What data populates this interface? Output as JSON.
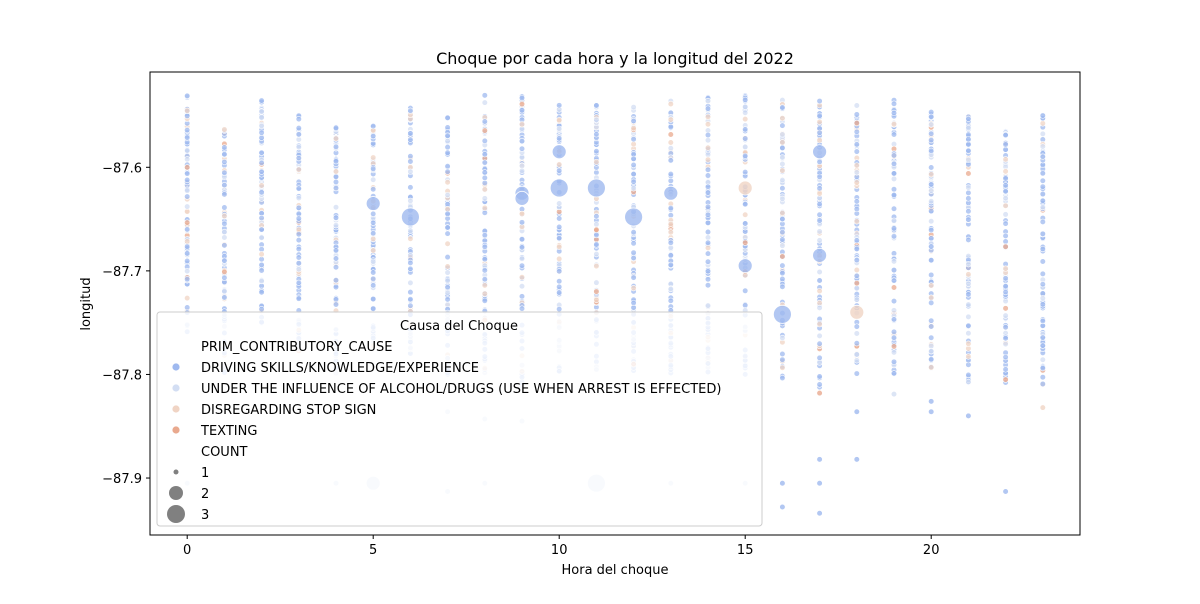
{
  "chart_data": {
    "type": "scatter",
    "title": "Choque por cada hora y la longitud del 2022",
    "xlabel": "Hora del choque",
    "ylabel": "longitud",
    "xlim": [
      -1.0,
      24.0
    ],
    "ylim": [
      -87.955,
      -87.508
    ],
    "xticks": [
      0,
      5,
      10,
      15,
      20
    ],
    "yticks": [
      -87.9,
      -87.8,
      -87.7,
      -87.6
    ],
    "ytick_labels": [
      "−87.9",
      "−87.8",
      "−87.7",
      "−87.6"
    ],
    "grid": false,
    "legend": {
      "title": "Causa del Choque",
      "placement": "lower-left",
      "hue_header": "PRIM_CONTRIBUTORY_CAUSE",
      "size_header": "COUNT",
      "series": [
        {
          "name": "DRIVING SKILLS/KNOWLEDGE/EXPERIENCE",
          "color": "#9fb9ef"
        },
        {
          "name": "UNDER THE INFLUENCE OF ALCOHOL/DRUGS (USE WHEN ARREST IS EFFECTED)",
          "color": "#d3def3"
        },
        {
          "name": "DISREGARDING STOP SIGN",
          "color": "#f0d4c4"
        },
        {
          "name": "TEXTING",
          "color": "#e9a98e"
        }
      ],
      "sizes": [
        {
          "label": "1",
          "count": 1
        },
        {
          "label": "2",
          "count": 2
        },
        {
          "label": "3",
          "count": 3
        }
      ]
    },
    "dense_range": [
      [
        0,
        -87.53,
        -87.76
      ],
      [
        1,
        -87.56,
        -87.8
      ],
      [
        2,
        -87.535,
        -87.76
      ],
      [
        3,
        -87.55,
        -87.78
      ],
      [
        4,
        -87.56,
        -87.8
      ],
      [
        5,
        -87.56,
        -87.78
      ],
      [
        6,
        -87.54,
        -87.79
      ],
      [
        7,
        -87.55,
        -87.8
      ],
      [
        8,
        -87.53,
        -87.8
      ],
      [
        9,
        -87.53,
        -87.82
      ],
      [
        10,
        -87.54,
        -87.8
      ],
      [
        11,
        -87.54,
        -87.8
      ],
      [
        12,
        -87.54,
        -87.8
      ],
      [
        13,
        -87.535,
        -87.8
      ],
      [
        14,
        -87.53,
        -87.8
      ],
      [
        15,
        -87.53,
        -87.8
      ],
      [
        16,
        -87.535,
        -87.81
      ],
      [
        17,
        -87.53,
        -87.82
      ],
      [
        18,
        -87.54,
        -87.8
      ],
      [
        19,
        -87.535,
        -87.8
      ],
      [
        20,
        -87.545,
        -87.8
      ],
      [
        21,
        -87.55,
        -87.81
      ],
      [
        22,
        -87.565,
        -87.81
      ],
      [
        23,
        -87.55,
        -87.81
      ]
    ],
    "large_points": [
      {
        "x": 5,
        "y": -87.635,
        "count": 2,
        "series": 0
      },
      {
        "x": 6,
        "y": -87.648,
        "count": 3,
        "series": 0
      },
      {
        "x": 9,
        "y": -87.625,
        "count": 2,
        "series": 0
      },
      {
        "x": 9,
        "y": -87.63,
        "count": 2,
        "series": 0
      },
      {
        "x": 10,
        "y": -87.585,
        "count": 2,
        "series": 0
      },
      {
        "x": 10,
        "y": -87.62,
        "count": 3,
        "series": 0
      },
      {
        "x": 11,
        "y": -87.62,
        "count": 3,
        "series": 0
      },
      {
        "x": 12,
        "y": -87.648,
        "count": 3,
        "series": 0
      },
      {
        "x": 13,
        "y": -87.625,
        "count": 2,
        "series": 0
      },
      {
        "x": 15,
        "y": -87.62,
        "count": 2,
        "series": 2
      },
      {
        "x": 15,
        "y": -87.695,
        "count": 2,
        "series": 0
      },
      {
        "x": 16,
        "y": -87.742,
        "count": 3,
        "series": 0
      },
      {
        "x": 17,
        "y": -87.585,
        "count": 2,
        "series": 0
      },
      {
        "x": 17,
        "y": -87.685,
        "count": 2,
        "series": 0
      },
      {
        "x": 18,
        "y": -87.74,
        "count": 2,
        "series": 2
      },
      {
        "x": 5,
        "y": -87.905,
        "count": 2,
        "series": 1
      },
      {
        "x": 11,
        "y": -87.905,
        "count": 3,
        "series": 1
      }
    ],
    "outlier_points": [
      {
        "x": 0,
        "y": -87.905,
        "count": 1,
        "series": 1
      },
      {
        "x": 4,
        "y": -87.905,
        "count": 1,
        "series": 1
      },
      {
        "x": 7,
        "y": -87.913,
        "count": 1,
        "series": 1
      },
      {
        "x": 8,
        "y": -87.905,
        "count": 1,
        "series": 1
      },
      {
        "x": 13,
        "y": -87.905,
        "count": 1,
        "series": 1
      },
      {
        "x": 15,
        "y": -87.905,
        "count": 1,
        "series": 1
      },
      {
        "x": 16,
        "y": -87.905,
        "count": 1,
        "series": 0
      },
      {
        "x": 16,
        "y": -87.928,
        "count": 1,
        "series": 0
      },
      {
        "x": 17,
        "y": -87.882,
        "count": 1,
        "series": 0
      },
      {
        "x": 17,
        "y": -87.905,
        "count": 1,
        "series": 0
      },
      {
        "x": 17,
        "y": -87.934,
        "count": 1,
        "series": 0
      },
      {
        "x": 18,
        "y": -87.882,
        "count": 1,
        "series": 0
      },
      {
        "x": 18,
        "y": -87.836,
        "count": 1,
        "series": 0
      },
      {
        "x": 20,
        "y": -87.826,
        "count": 1,
        "series": 0
      },
      {
        "x": 20,
        "y": -87.836,
        "count": 1,
        "series": 0
      },
      {
        "x": 21,
        "y": -87.84,
        "count": 1,
        "series": 0
      },
      {
        "x": 22,
        "y": -87.913,
        "count": 1,
        "series": 0
      },
      {
        "x": 23,
        "y": -87.832,
        "count": 1,
        "series": 2
      },
      {
        "x": 9,
        "y": -87.845,
        "count": 1,
        "series": 1
      },
      {
        "x": 7,
        "y": -87.836,
        "count": 1,
        "series": 1
      },
      {
        "x": 8,
        "y": -87.843,
        "count": 1,
        "series": 1
      },
      {
        "x": 19,
        "y": -87.819,
        "count": 1,
        "series": 1
      },
      {
        "x": 22,
        "y": -87.805,
        "count": 1,
        "series": 3
      },
      {
        "x": 17,
        "y": -87.818,
        "count": 1,
        "series": 3
      }
    ]
  }
}
